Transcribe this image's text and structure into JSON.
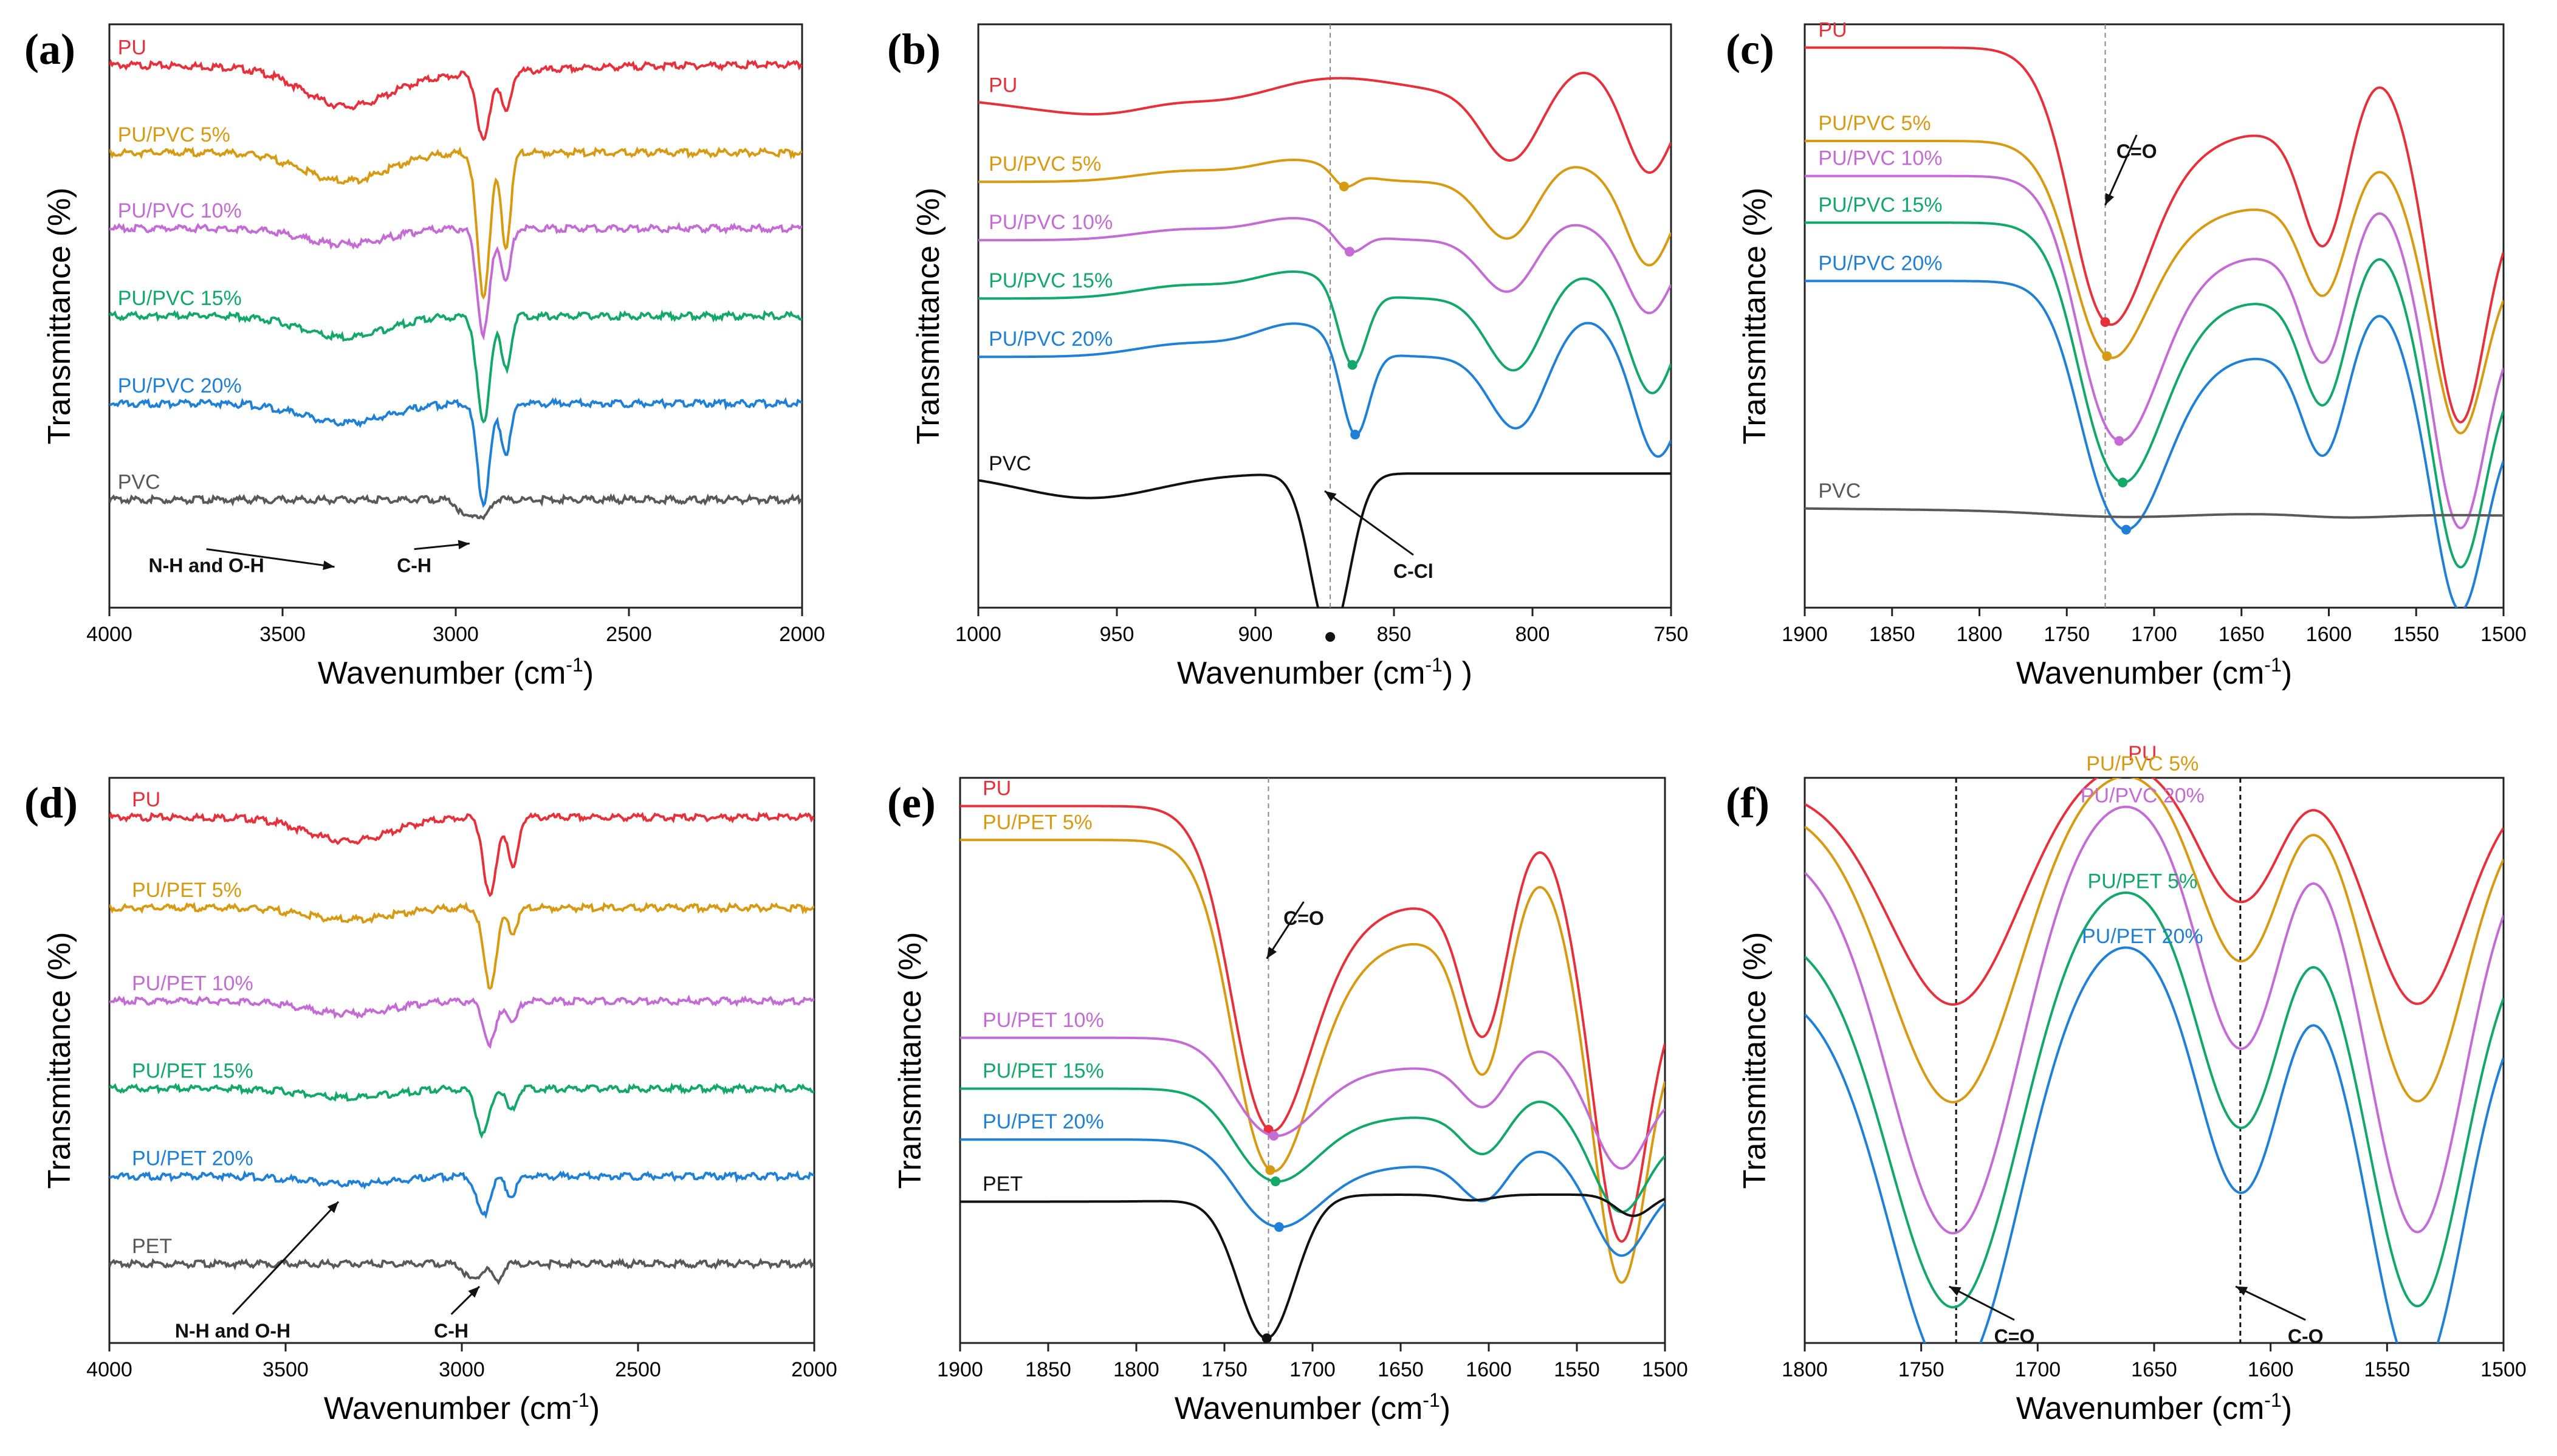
{
  "figure": {
    "colors": {
      "PU": "#e8303a",
      "5": "#d89a10",
      "10": "#c46bd6",
      "15": "#12a86a",
      "20": "#1f80d8",
      "base": "#595959",
      "base_dark": "#111111"
    }
  },
  "chart_data": [
    {
      "panel": "(a)",
      "type": "line",
      "ylabel": "Transmittance (%)",
      "xlabel": "Wavenumber (cm",
      "xlabel_sup": "-1",
      "xlabel_tail": ")",
      "xlim": [
        4000,
        2000
      ],
      "xticks": [
        4000,
        3500,
        3000,
        2500,
        2000
      ],
      "ylim": [
        0,
        1
      ],
      "series": [
        {
          "name": "PU",
          "color": "#e8303a",
          "offset": 0.93,
          "scale": 0.115,
          "label_wn": 3990,
          "bands": [
            [
              3320,
              120,
              0.5
            ],
            [
              2920,
              18,
              1.0
            ],
            [
              2855,
              14,
              0.6
            ],
            [
              3100,
              300,
              0.15
            ]
          ]
        },
        {
          "name": "PU/PVC 5%",
          "color": "#d89a10",
          "offset": 0.78,
          "scale": 0.245,
          "label_wn": 3990,
          "bands": [
            [
              3320,
              120,
              0.2
            ],
            [
              2920,
              18,
              1.0
            ],
            [
              2855,
              14,
              0.65
            ]
          ]
        },
        {
          "name": "PU/PVC 10%",
          "color": "#c46bd6",
          "offset": 0.65,
          "scale": 0.18,
          "label_wn": 3990,
          "bands": [
            [
              3320,
              120,
              0.15
            ],
            [
              2920,
              18,
              1.0
            ],
            [
              2855,
              14,
              0.5
            ]
          ]
        },
        {
          "name": "PU/PVC 15%",
          "color": "#12a86a",
          "offset": 0.5,
          "scale": 0.185,
          "label_wn": 3990,
          "bands": [
            [
              3320,
              120,
              0.2
            ],
            [
              2920,
              18,
              1.0
            ],
            [
              2855,
              14,
              0.5
            ]
          ]
        },
        {
          "name": "PU/PVC 20%",
          "color": "#1f80d8",
          "offset": 0.35,
          "scale": 0.17,
          "label_wn": 3990,
          "bands": [
            [
              3320,
              120,
              0.2
            ],
            [
              2920,
              18,
              1.0
            ],
            [
              2855,
              14,
              0.5
            ]
          ]
        },
        {
          "name": "PVC",
          "color": "#595959",
          "offset": 0.185,
          "scale": 0.035,
          "label_wn": 3990,
          "bands": [
            [
              2970,
              20,
              0.9
            ],
            [
              2920,
              15,
              0.9
            ]
          ]
        }
      ],
      "annotations": [
        {
          "text": "N-H and O-H",
          "wn": 3350,
          "y": 0.07,
          "tx": 3720,
          "ty": 0.09
        },
        {
          "text": "C-H",
          "wn": 2960,
          "y": 0.11,
          "tx": 3120,
          "ty": 0.09
        }
      ]
    },
    {
      "panel": "(b)",
      "type": "line",
      "ylabel": "Transmittance (%)",
      "xlabel": "Wavenumber (cm",
      "xlabel_sup": "-1",
      "xlabel_tail": ") )",
      "xlim": [
        1000,
        750
      ],
      "xticks": [
        1000,
        950,
        900,
        850,
        800,
        750
      ],
      "ylim": [
        0,
        1
      ],
      "vline": 873,
      "series": [
        {
          "name": "PU",
          "color": "#e8303a",
          "offset": 0.88,
          "scale": 0.21,
          "label_wn": 998,
          "bands": [
            [
              808,
              10,
              0.55
            ],
            [
              758,
              8,
              0.65
            ],
            [
              940,
              40,
              0.2
            ]
          ],
          "bumps": [
            [
              876,
              25,
              0.18
            ],
            [
              782,
              10,
              0.2
            ],
            [
              930,
              15,
              0.1
            ]
          ]
        },
        {
          "name": "PU/PVC 5%",
          "color": "#d89a10",
          "offset": 0.73,
          "scale": 0.18,
          "label_wn": 998,
          "marker_wn": 868,
          "bands": [
            [
              868,
              4,
              0.15
            ],
            [
              808,
              10,
              0.6
            ],
            [
              758,
              8,
              0.8
            ]
          ],
          "bumps": [
            [
              885,
              15,
              0.2
            ],
            [
              790,
              12,
              0.2
            ],
            [
              925,
              18,
              0.1
            ]
          ]
        },
        {
          "name": "PU/PVC 10%",
          "color": "#c46bd6",
          "offset": 0.63,
          "scale": 0.18,
          "label_wn": 998,
          "marker_wn": 866,
          "bands": [
            [
              866,
              5,
              0.2
            ],
            [
              808,
              10,
              0.55
            ],
            [
              758,
              8,
              0.7
            ]
          ],
          "bumps": [
            [
              885,
              15,
              0.2
            ],
            [
              790,
              12,
              0.2
            ],
            [
              925,
              18,
              0.1
            ]
          ]
        },
        {
          "name": "PU/PVC 15%",
          "color": "#12a86a",
          "offset": 0.53,
          "scale": 0.22,
          "label_wn": 998,
          "marker_wn": 865,
          "bands": [
            [
              865,
              5,
              0.6
            ],
            [
              806,
              10,
              0.6
            ],
            [
              757,
              8,
              0.75
            ]
          ],
          "bumps": [
            [
              885,
              15,
              0.2
            ],
            [
              785,
              12,
              0.2
            ],
            [
              925,
              18,
              0.1
            ]
          ]
        },
        {
          "name": "PU/PVC 20%",
          "color": "#1f80d8",
          "offset": 0.43,
          "scale": 0.22,
          "label_wn": 998,
          "marker_wn": 864,
          "bands": [
            [
              864,
              5,
              0.7
            ],
            [
              805,
              10,
              0.6
            ],
            [
              755,
              8,
              0.8
            ]
          ],
          "bumps": [
            [
              885,
              15,
              0.25
            ],
            [
              782,
              12,
              0.3
            ],
            [
              925,
              18,
              0.1
            ]
          ]
        },
        {
          "name": "PVC",
          "color": "#111111",
          "offset": 0.23,
          "scale": 0.28,
          "label_wn": 998,
          "marker_wn": 873,
          "bands": [
            [
              873,
              7,
              1.0
            ],
            [
              960,
              25,
              0.15
            ]
          ],
          "bumps": []
        }
      ],
      "annotations": [
        {
          "text": "C-Cl",
          "wn": 875,
          "y": 0.2,
          "tx": 843,
          "ty": 0.08
        }
      ]
    },
    {
      "panel": "(c)",
      "type": "line",
      "ylabel": "Transmittance (%)",
      "xlabel": "Wavenumber (cm",
      "xlabel_sup": "-1",
      "xlabel_tail": ")",
      "xlim": [
        1900,
        1500
      ],
      "xticks": [
        1900,
        1850,
        1800,
        1750,
        1700,
        1650,
        1600,
        1550,
        1500
      ],
      "ylim": [
        0,
        1
      ],
      "vline": 1728,
      "series": [
        {
          "name": "PU",
          "color": "#e8303a",
          "offset": 0.96,
          "scale": 0.5,
          "label_wn": 1895,
          "marker_wn": 1728,
          "style": "carbonyl"
        },
        {
          "name": "PU/PVC 5%",
          "color": "#d89a10",
          "offset": 0.8,
          "scale": 0.39,
          "label_wn": 1895,
          "marker_wn": 1727,
          "style": "carbonyl"
        },
        {
          "name": "PU/PVC 10%",
          "color": "#c46bd6",
          "offset": 0.74,
          "scale": 0.47,
          "label_wn": 1895,
          "marker_wn": 1720,
          "style": "carbonyl"
        },
        {
          "name": "PU/PVC 15%",
          "color": "#12a86a",
          "offset": 0.66,
          "scale": 0.46,
          "label_wn": 1895,
          "marker_wn": 1718,
          "style": "carbonyl"
        },
        {
          "name": "PU/PVC 20%",
          "color": "#1f80d8",
          "offset": 0.56,
          "scale": 0.44,
          "label_wn": 1895,
          "marker_wn": 1716,
          "style": "carbonyl"
        },
        {
          "name": "PVC",
          "color": "#595959",
          "offset": 0.17,
          "scale": 0.03,
          "label_wn": 1895,
          "style": "flat"
        }
      ],
      "annotations": [
        {
          "text": "C=O",
          "wn": 1728,
          "y": 0.69,
          "tx": 1710,
          "ty": 0.8
        }
      ]
    },
    {
      "panel": "(d)",
      "type": "line",
      "ylabel": "Transmittance (%)",
      "xlabel": "Wavenumber (cm",
      "xlabel_sup": "-1",
      "xlabel_tail": ")",
      "xlim": [
        4000,
        2000
      ],
      "xticks": [
        4000,
        3500,
        3000,
        2500,
        2000
      ],
      "ylim": [
        0,
        1
      ],
      "series": [
        {
          "name": "PU",
          "color": "#e8303a",
          "offset": 0.93,
          "scale": 0.14,
          "label_wn": 3950,
          "bands": [
            [
              3320,
              120,
              0.3
            ],
            [
              2920,
              18,
              1.0
            ],
            [
              2855,
              14,
              0.65
            ]
          ]
        },
        {
          "name": "PU/PET 5%",
          "color": "#d89a10",
          "offset": 0.77,
          "scale": 0.14,
          "label_wn": 3950,
          "bands": [
            [
              3320,
              120,
              0.15
            ],
            [
              2920,
              18,
              1.0
            ],
            [
              2855,
              14,
              0.3
            ]
          ]
        },
        {
          "name": "PU/PET 10%",
          "color": "#c46bd6",
          "offset": 0.605,
          "scale": 0.075,
          "label_wn": 3950,
          "bands": [
            [
              3320,
              120,
              0.3
            ],
            [
              2920,
              18,
              1.0
            ],
            [
              2855,
              14,
              0.5
            ]
          ]
        },
        {
          "name": "PU/PET 15%",
          "color": "#12a86a",
          "offset": 0.45,
          "scale": 0.08,
          "label_wn": 3950,
          "bands": [
            [
              3320,
              120,
              0.2
            ],
            [
              2940,
              18,
              1.0
            ],
            [
              2860,
              14,
              0.5
            ]
          ]
        },
        {
          "name": "PU/PET 20%",
          "color": "#1f80d8",
          "offset": 0.295,
          "scale": 0.07,
          "label_wn": 3950,
          "bands": [
            [
              3320,
              120,
              0.2
            ],
            [
              2940,
              18,
              1.0
            ],
            [
              2860,
              14,
              0.5
            ]
          ]
        },
        {
          "name": "PET",
          "color": "#595959",
          "offset": 0.14,
          "scale": 0.05,
          "label_wn": 3950,
          "bands": [
            [
              2970,
              20,
              0.6
            ],
            [
              2900,
              15,
              0.6
            ]
          ]
        }
      ],
      "annotations": [
        {
          "text": "N-H and O-H",
          "wn": 3350,
          "y": 0.25,
          "tx": 3650,
          "ty": 0.04
        },
        {
          "text": "C-H",
          "wn": 2950,
          "y": 0.1,
          "tx": 3030,
          "ty": 0.04
        }
      ]
    },
    {
      "panel": "(e)",
      "type": "line",
      "ylabel": "Transmittance (%)",
      "xlabel": "Wavenumber (cm",
      "xlabel_sup": "-1",
      "xlabel_tail": ")",
      "xlim": [
        1900,
        1500
      ],
      "xticks": [
        1900,
        1850,
        1800,
        1750,
        1700,
        1650,
        1600,
        1550,
        1500
      ],
      "ylim": [
        0,
        1
      ],
      "vline": 1725,
      "series": [
        {
          "name": "PU",
          "color": "#e8303a",
          "offset": 0.95,
          "scale": 0.6,
          "label_wn": 1890,
          "marker_wn": 1725,
          "style": "carbonyl"
        },
        {
          "name": "PU/PET 5%",
          "color": "#d89a10",
          "offset": 0.89,
          "scale": 0.61,
          "label_wn": 1890,
          "marker_wn": 1724,
          "style": "carbonyl"
        },
        {
          "name": "PU/PET 10%",
          "color": "#c46bd6",
          "offset": 0.54,
          "scale": 0.18,
          "label_wn": 1890,
          "marker_wn": 1722,
          "style": "carbonyl"
        },
        {
          "name": "PU/PET 15%",
          "color": "#12a86a",
          "offset": 0.45,
          "scale": 0.17,
          "label_wn": 1890,
          "marker_wn": 1721,
          "style": "carbonyl"
        },
        {
          "name": "PU/PET 20%",
          "color": "#1f80d8",
          "offset": 0.36,
          "scale": 0.16,
          "label_wn": 1890,
          "marker_wn": 1719,
          "style": "carbonyl"
        },
        {
          "name": "PET",
          "color": "#111111",
          "offset": 0.25,
          "scale": 0.25,
          "label_wn": 1890,
          "marker_wn": 1726,
          "style": "pet"
        }
      ],
      "annotations": [
        {
          "text": "C=O",
          "wn": 1726,
          "y": 0.68,
          "tx": 1705,
          "ty": 0.77
        }
      ]
    },
    {
      "panel": "(f)",
      "type": "line",
      "ylabel": "Transmittance (%)",
      "xlabel": "Wavenumber (cm",
      "xlabel_sup": "-1",
      "xlabel_tail": ")",
      "xlim": [
        1800,
        1500
      ],
      "xticks": [
        1800,
        1750,
        1700,
        1650,
        1600,
        1550,
        1500
      ],
      "ylim": [
        0,
        1
      ],
      "vlines": [
        1735,
        1613
      ],
      "series": [
        {
          "name": "PU",
          "color": "#e8303a",
          "offset": 0.98,
          "scale": 0.4,
          "label_wn": 1655,
          "style": "f"
        },
        {
          "name": "PU/PVC 5%",
          "color": "#d89a10",
          "offset": 0.95,
          "scale": 0.55,
          "label_wn": 1655,
          "style": "f"
        },
        {
          "name": "PU/PVC 20%",
          "color": "#c46bd6",
          "offset": 0.88,
          "scale": 0.72,
          "label_wn": 1655,
          "style": "f"
        },
        {
          "name": "PU/PET 5%",
          "color": "#12a86a",
          "offset": 0.73,
          "scale": 0.7,
          "label_wn": 1655,
          "style": "f"
        },
        {
          "name": "PU/PET 20%",
          "color": "#1f80d8",
          "offset": 0.63,
          "scale": 0.73,
          "label_wn": 1655,
          "style": "f"
        }
      ],
      "annotations": [
        {
          "text": "C=O",
          "wn": 1738,
          "y": 0.1,
          "tx": 1710,
          "ty": 0.03
        },
        {
          "text": "C-O",
          "wn": 1615,
          "y": 0.1,
          "tx": 1585,
          "ty": 0.03
        }
      ]
    }
  ]
}
